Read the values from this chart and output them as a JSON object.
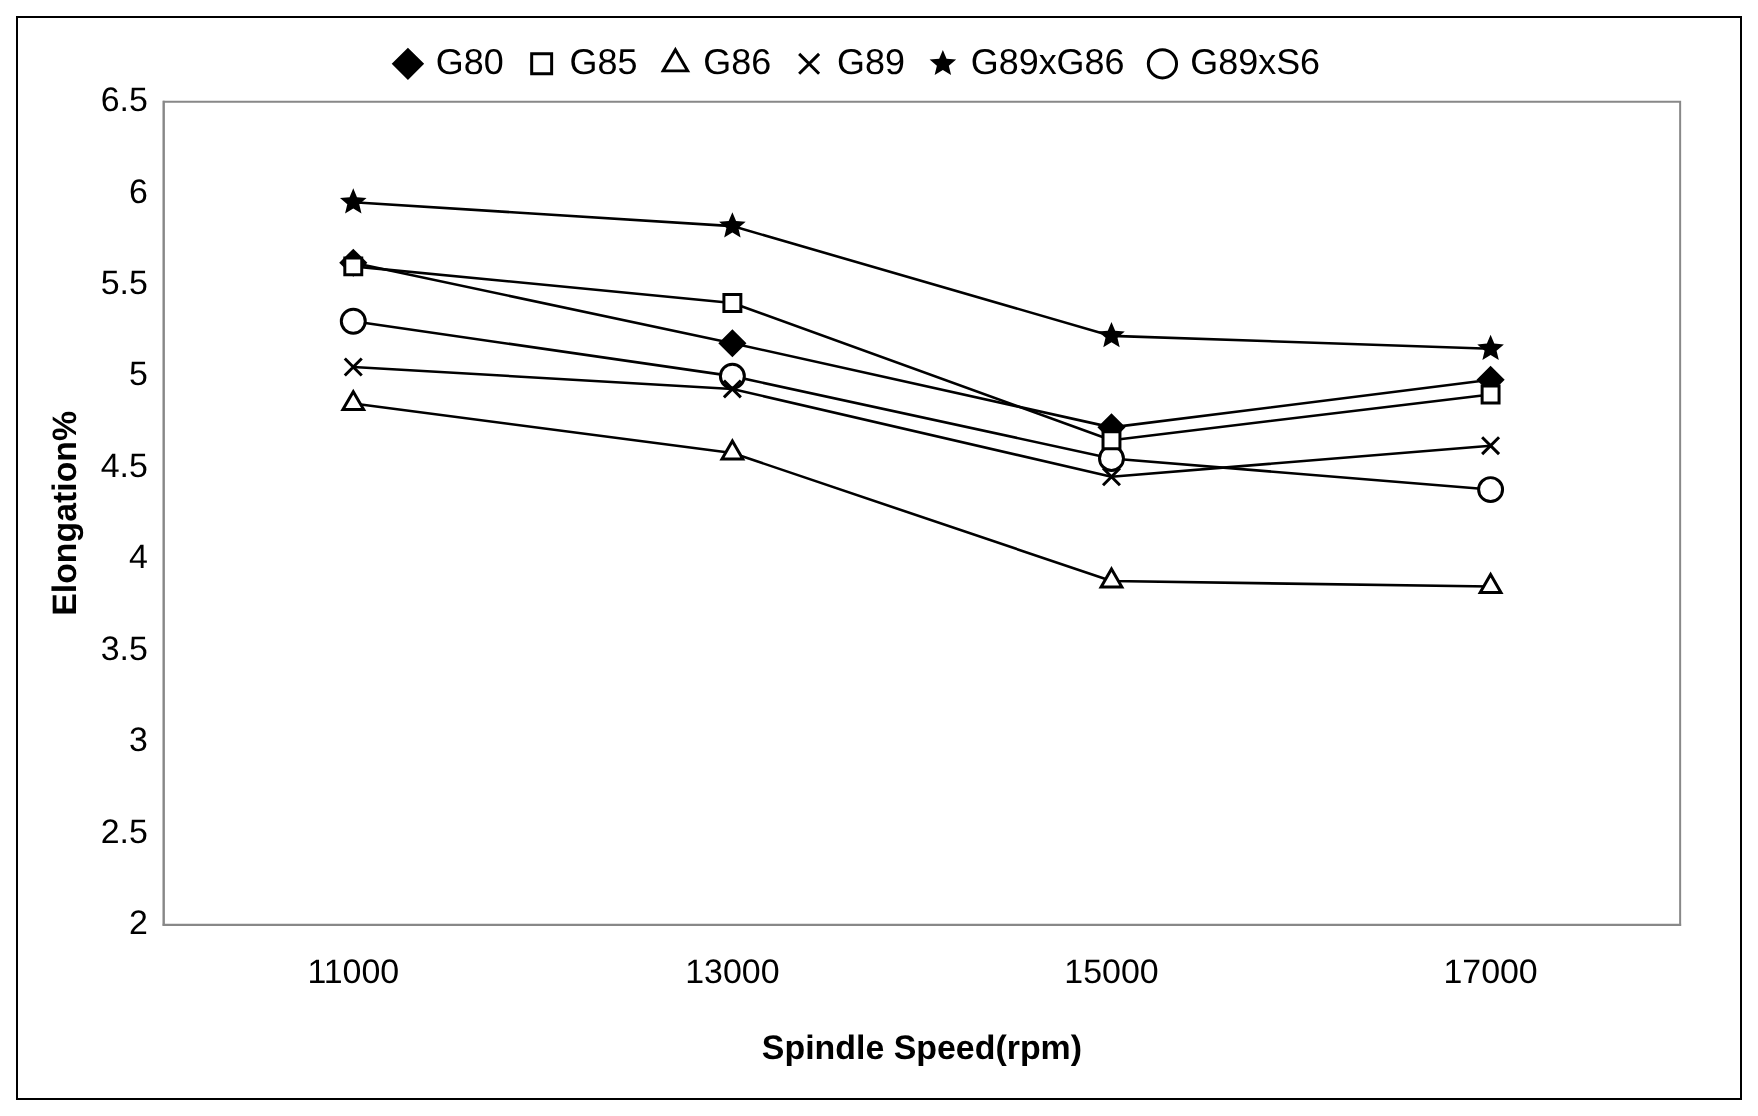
{
  "chart_data": {
    "type": "line",
    "xlabel": "Spindle Speed(rpm)",
    "ylabel": "Elongation%",
    "categories": [
      "11000",
      "13000",
      "15000",
      "17000"
    ],
    "ylim": [
      2,
      6.5
    ],
    "yticks": [
      2,
      2.5,
      3,
      3.5,
      4,
      4.5,
      5,
      5.5,
      6,
      6.5
    ],
    "grid": false,
    "legend": "top",
    "line_style": "solid",
    "series": [
      {
        "name": "G80",
        "color": "#000000",
        "marker": "diamond",
        "values": [
          5.62,
          5.18,
          4.72,
          4.98
        ]
      },
      {
        "name": "G85",
        "color": "#000000",
        "marker": "square",
        "values": [
          5.6,
          5.4,
          4.65,
          4.9
        ]
      },
      {
        "name": "G86",
        "color": "#000000",
        "marker": "triangle",
        "values": [
          4.85,
          4.58,
          3.88,
          3.85
        ]
      },
      {
        "name": "G89",
        "color": "#000000",
        "marker": "cross",
        "values": [
          5.05,
          4.93,
          4.45,
          4.62
        ]
      },
      {
        "name": "G89xG86",
        "color": "#000000",
        "marker": "star",
        "values": [
          5.95,
          5.82,
          5.22,
          5.15
        ]
      },
      {
        "name": "G89xS6",
        "color": "#000000",
        "marker": "circle",
        "values": [
          5.3,
          5.0,
          4.55,
          4.38
        ]
      }
    ]
  }
}
